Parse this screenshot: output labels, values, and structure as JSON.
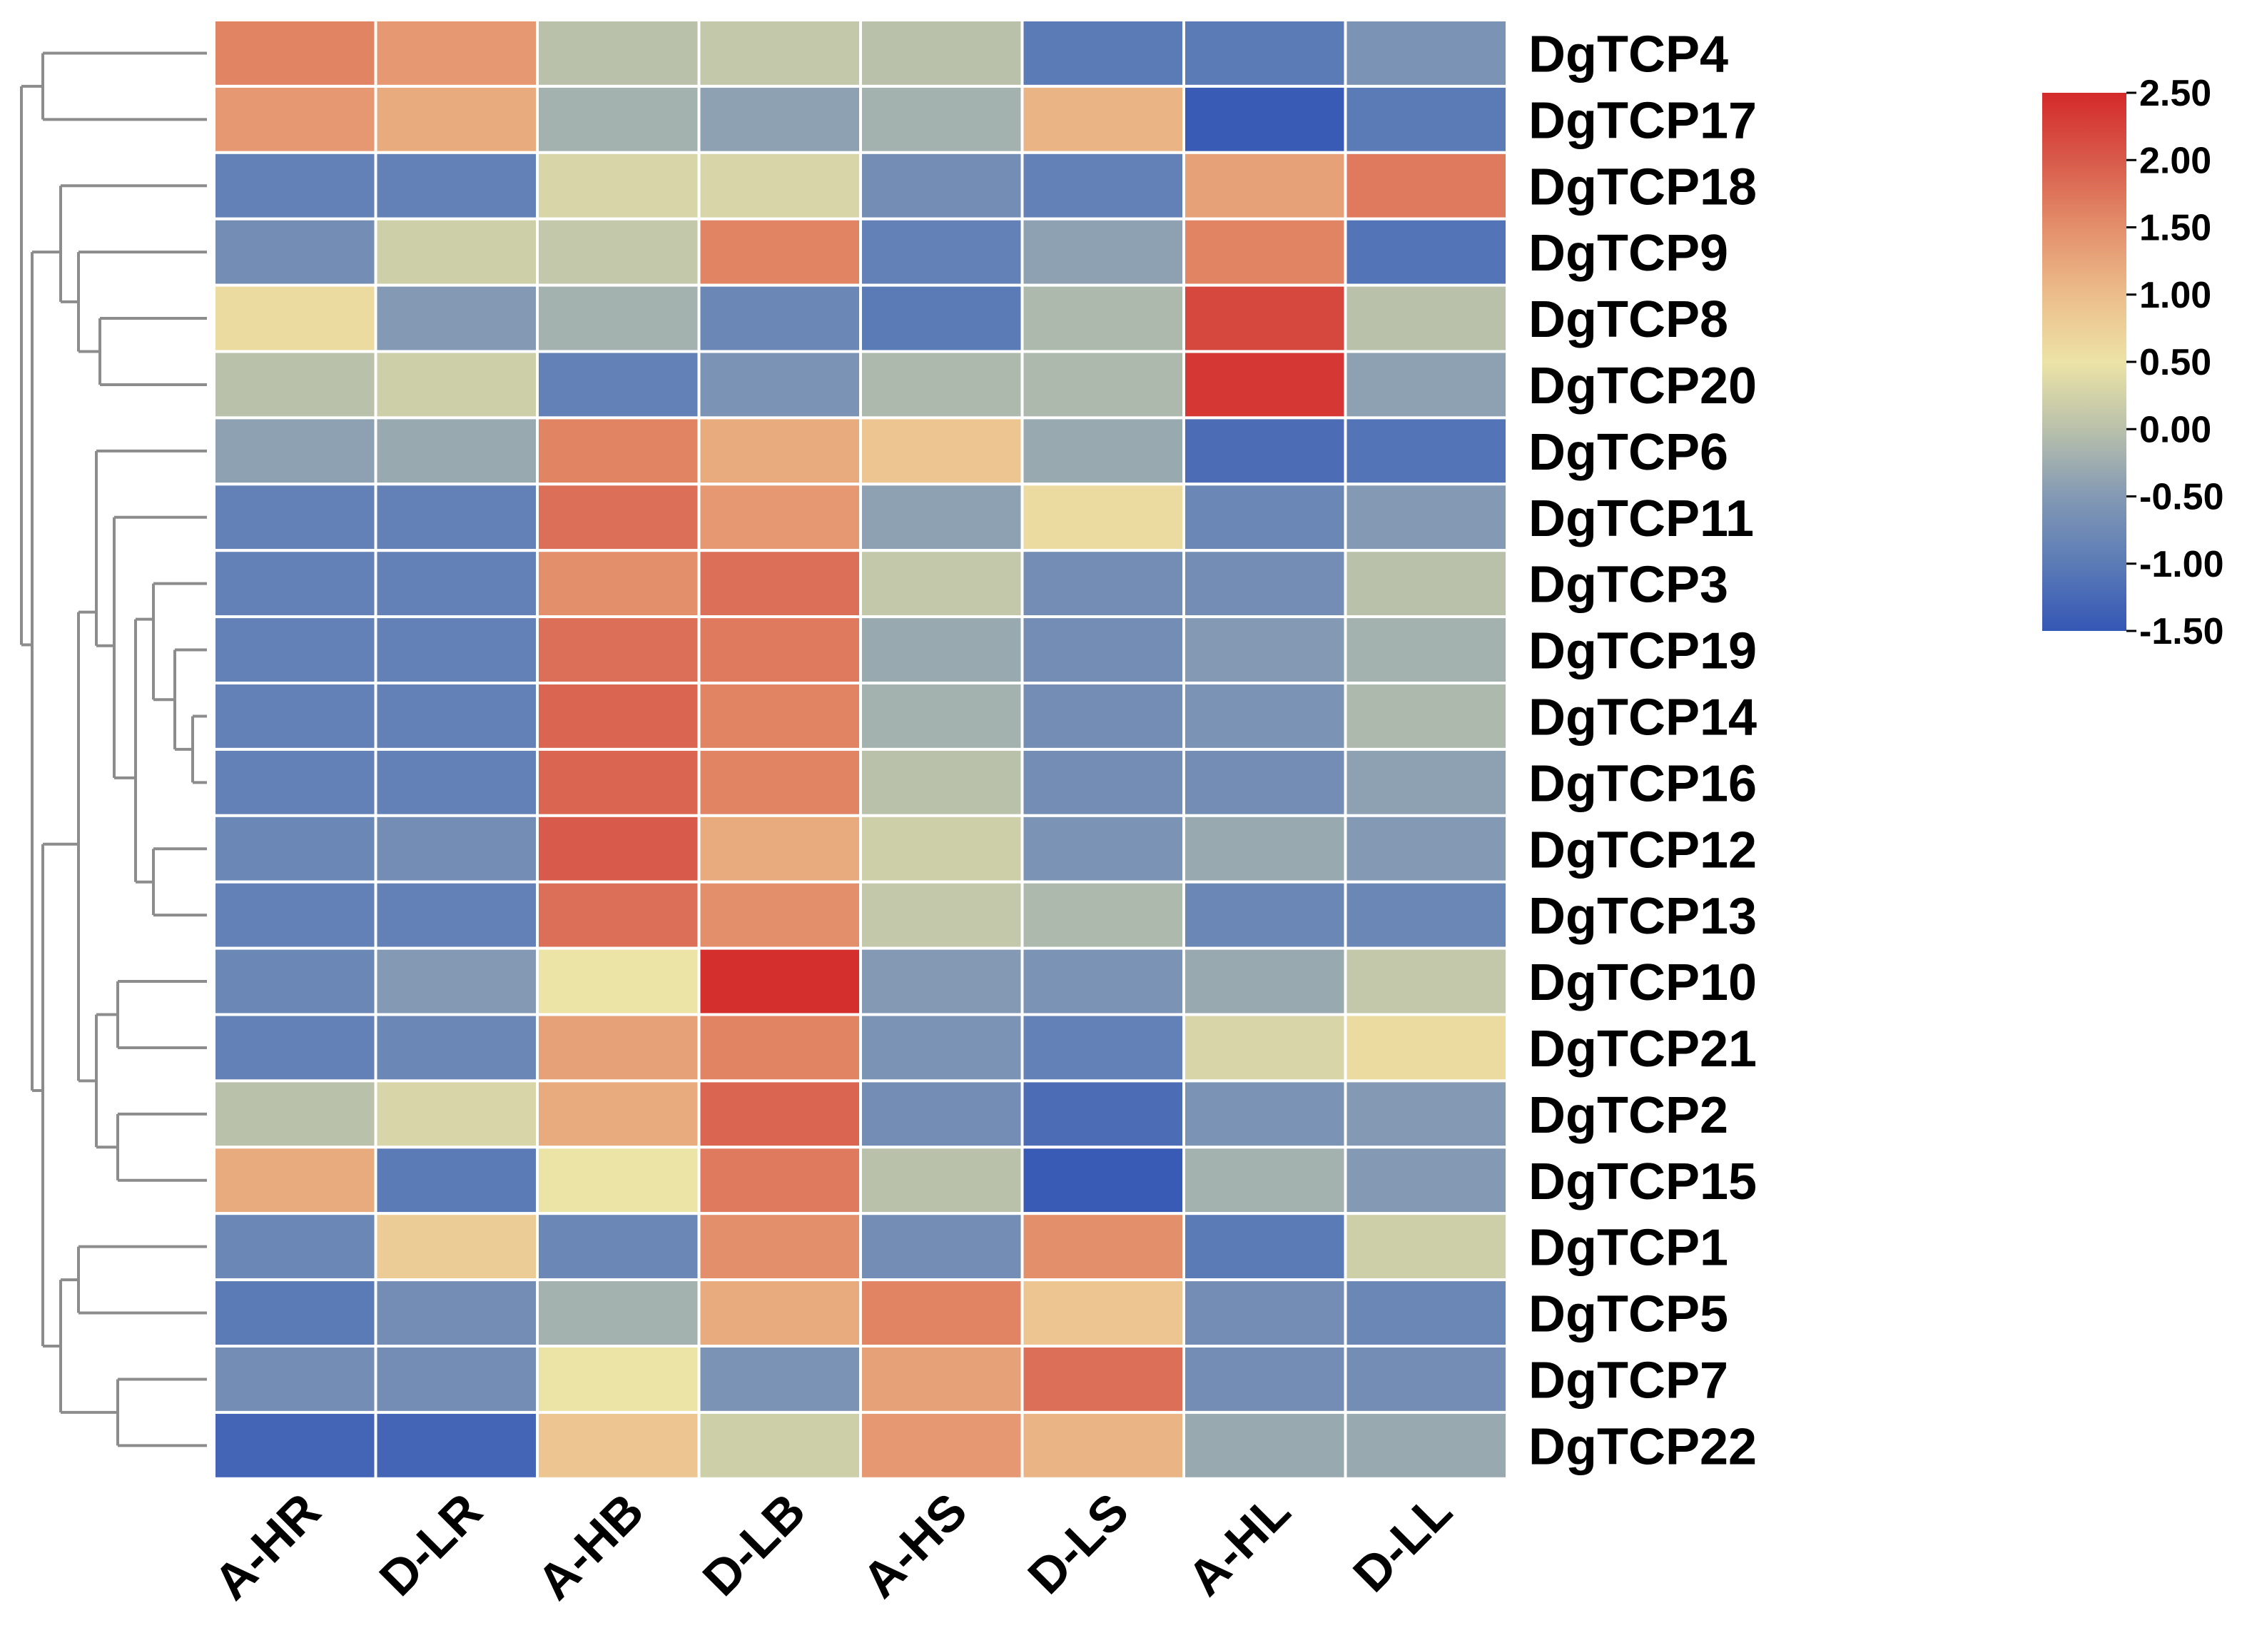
{
  "chart_data": {
    "type": "heatmap",
    "title": "",
    "columns": [
      "A-HR",
      "D-LR",
      "A-HB",
      "D-LB",
      "A-HS",
      "D-LS",
      "A-HL",
      "D-LL"
    ],
    "rows": [
      "DgTCP4",
      "DgTCP17",
      "DgTCP18",
      "DgTCP9",
      "DgTCP8",
      "DgTCP20",
      "DgTCP6",
      "DgTCP11",
      "DgTCP3",
      "DgTCP19",
      "DgTCP14",
      "DgTCP16",
      "DgTCP12",
      "DgTCP13",
      "DgTCP10",
      "DgTCP21",
      "DgTCP2",
      "DgTCP15",
      "DgTCP1",
      "DgTCP5",
      "DgTCP7",
      "DgTCP22"
    ],
    "values": [
      [
        1.6,
        1.4,
        0.0,
        0.1,
        0.0,
        -1.0,
        -1.0,
        -0.6
      ],
      [
        1.4,
        1.2,
        -0.2,
        -0.4,
        -0.2,
        1.1,
        -1.45,
        -1.0
      ],
      [
        -0.9,
        -0.9,
        0.3,
        0.3,
        -0.7,
        -0.9,
        1.3,
        1.7
      ],
      [
        -0.7,
        0.2,
        0.1,
        1.6,
        -0.9,
        -0.4,
        1.6,
        -1.1
      ],
      [
        0.6,
        -0.5,
        -0.2,
        -0.8,
        -1.0,
        -0.1,
        2.2,
        0.0
      ],
      [
        0.0,
        0.2,
        -0.9,
        -0.6,
        -0.1,
        -0.1,
        2.35,
        -0.4
      ],
      [
        -0.4,
        -0.3,
        1.6,
        1.2,
        0.9,
        -0.3,
        -1.2,
        -1.1
      ],
      [
        -0.9,
        -0.9,
        1.8,
        1.4,
        -0.4,
        0.6,
        -0.8,
        -0.5
      ],
      [
        -0.9,
        -0.9,
        1.5,
        1.8,
        0.1,
        -0.7,
        -0.7,
        0.0
      ],
      [
        -0.9,
        -0.9,
        1.8,
        1.7,
        -0.3,
        -0.7,
        -0.5,
        -0.2
      ],
      [
        -0.9,
        -0.9,
        1.9,
        1.6,
        -0.2,
        -0.7,
        -0.6,
        -0.1
      ],
      [
        -0.9,
        -0.9,
        1.9,
        1.6,
        0.0,
        -0.7,
        -0.7,
        -0.4
      ],
      [
        -0.8,
        -0.7,
        2.0,
        1.2,
        0.2,
        -0.6,
        -0.3,
        -0.5
      ],
      [
        -0.9,
        -0.9,
        1.8,
        1.5,
        0.1,
        -0.1,
        -0.8,
        -0.8
      ],
      [
        -0.8,
        -0.5,
        0.5,
        2.45,
        -0.5,
        -0.6,
        -0.3,
        0.1
      ],
      [
        -0.9,
        -0.8,
        1.3,
        1.6,
        -0.6,
        -0.9,
        0.3,
        0.6
      ],
      [
        0.0,
        0.3,
        1.2,
        1.9,
        -0.7,
        -1.2,
        -0.6,
        -0.5
      ],
      [
        1.2,
        -1.0,
        0.5,
        1.7,
        0.0,
        -1.45,
        -0.2,
        -0.5
      ],
      [
        -0.8,
        0.8,
        -0.8,
        1.5,
        -0.7,
        1.5,
        -1.0,
        0.2
      ],
      [
        -1.0,
        -0.7,
        -0.2,
        1.2,
        1.6,
        0.9,
        -0.7,
        -0.8
      ],
      [
        -0.7,
        -0.7,
        0.5,
        -0.6,
        1.3,
        1.8,
        -0.7,
        -0.7
      ],
      [
        -1.3,
        -1.3,
        0.9,
        0.2,
        1.4,
        1.1,
        -0.3,
        -0.3
      ]
    ],
    "color_scale": {
      "min": -1.5,
      "max": 2.5,
      "stops": [
        {
          "value": -1.5,
          "color": "#3557b5"
        },
        {
          "value": -1.0,
          "color": "#5b7bb6"
        },
        {
          "value": -0.5,
          "color": "#8399b4"
        },
        {
          "value": 0.0,
          "color": "#b9c1ab"
        },
        {
          "value": 0.5,
          "color": "#ece3a6"
        },
        {
          "value": 1.0,
          "color": "#ecbd8b"
        },
        {
          "value": 1.5,
          "color": "#e38f6b"
        },
        {
          "value": 2.0,
          "color": "#d85a4a"
        },
        {
          "value": 2.5,
          "color": "#d42a2a"
        }
      ],
      "tick_labels": [
        "2.50",
        "2.00",
        "1.50",
        "1.00",
        "0.50",
        "0.00",
        "-0.50",
        "-1.00",
        "-1.50"
      ]
    },
    "legend_position": "top-right",
    "dendrogram": "left (rows)",
    "grid": false
  }
}
